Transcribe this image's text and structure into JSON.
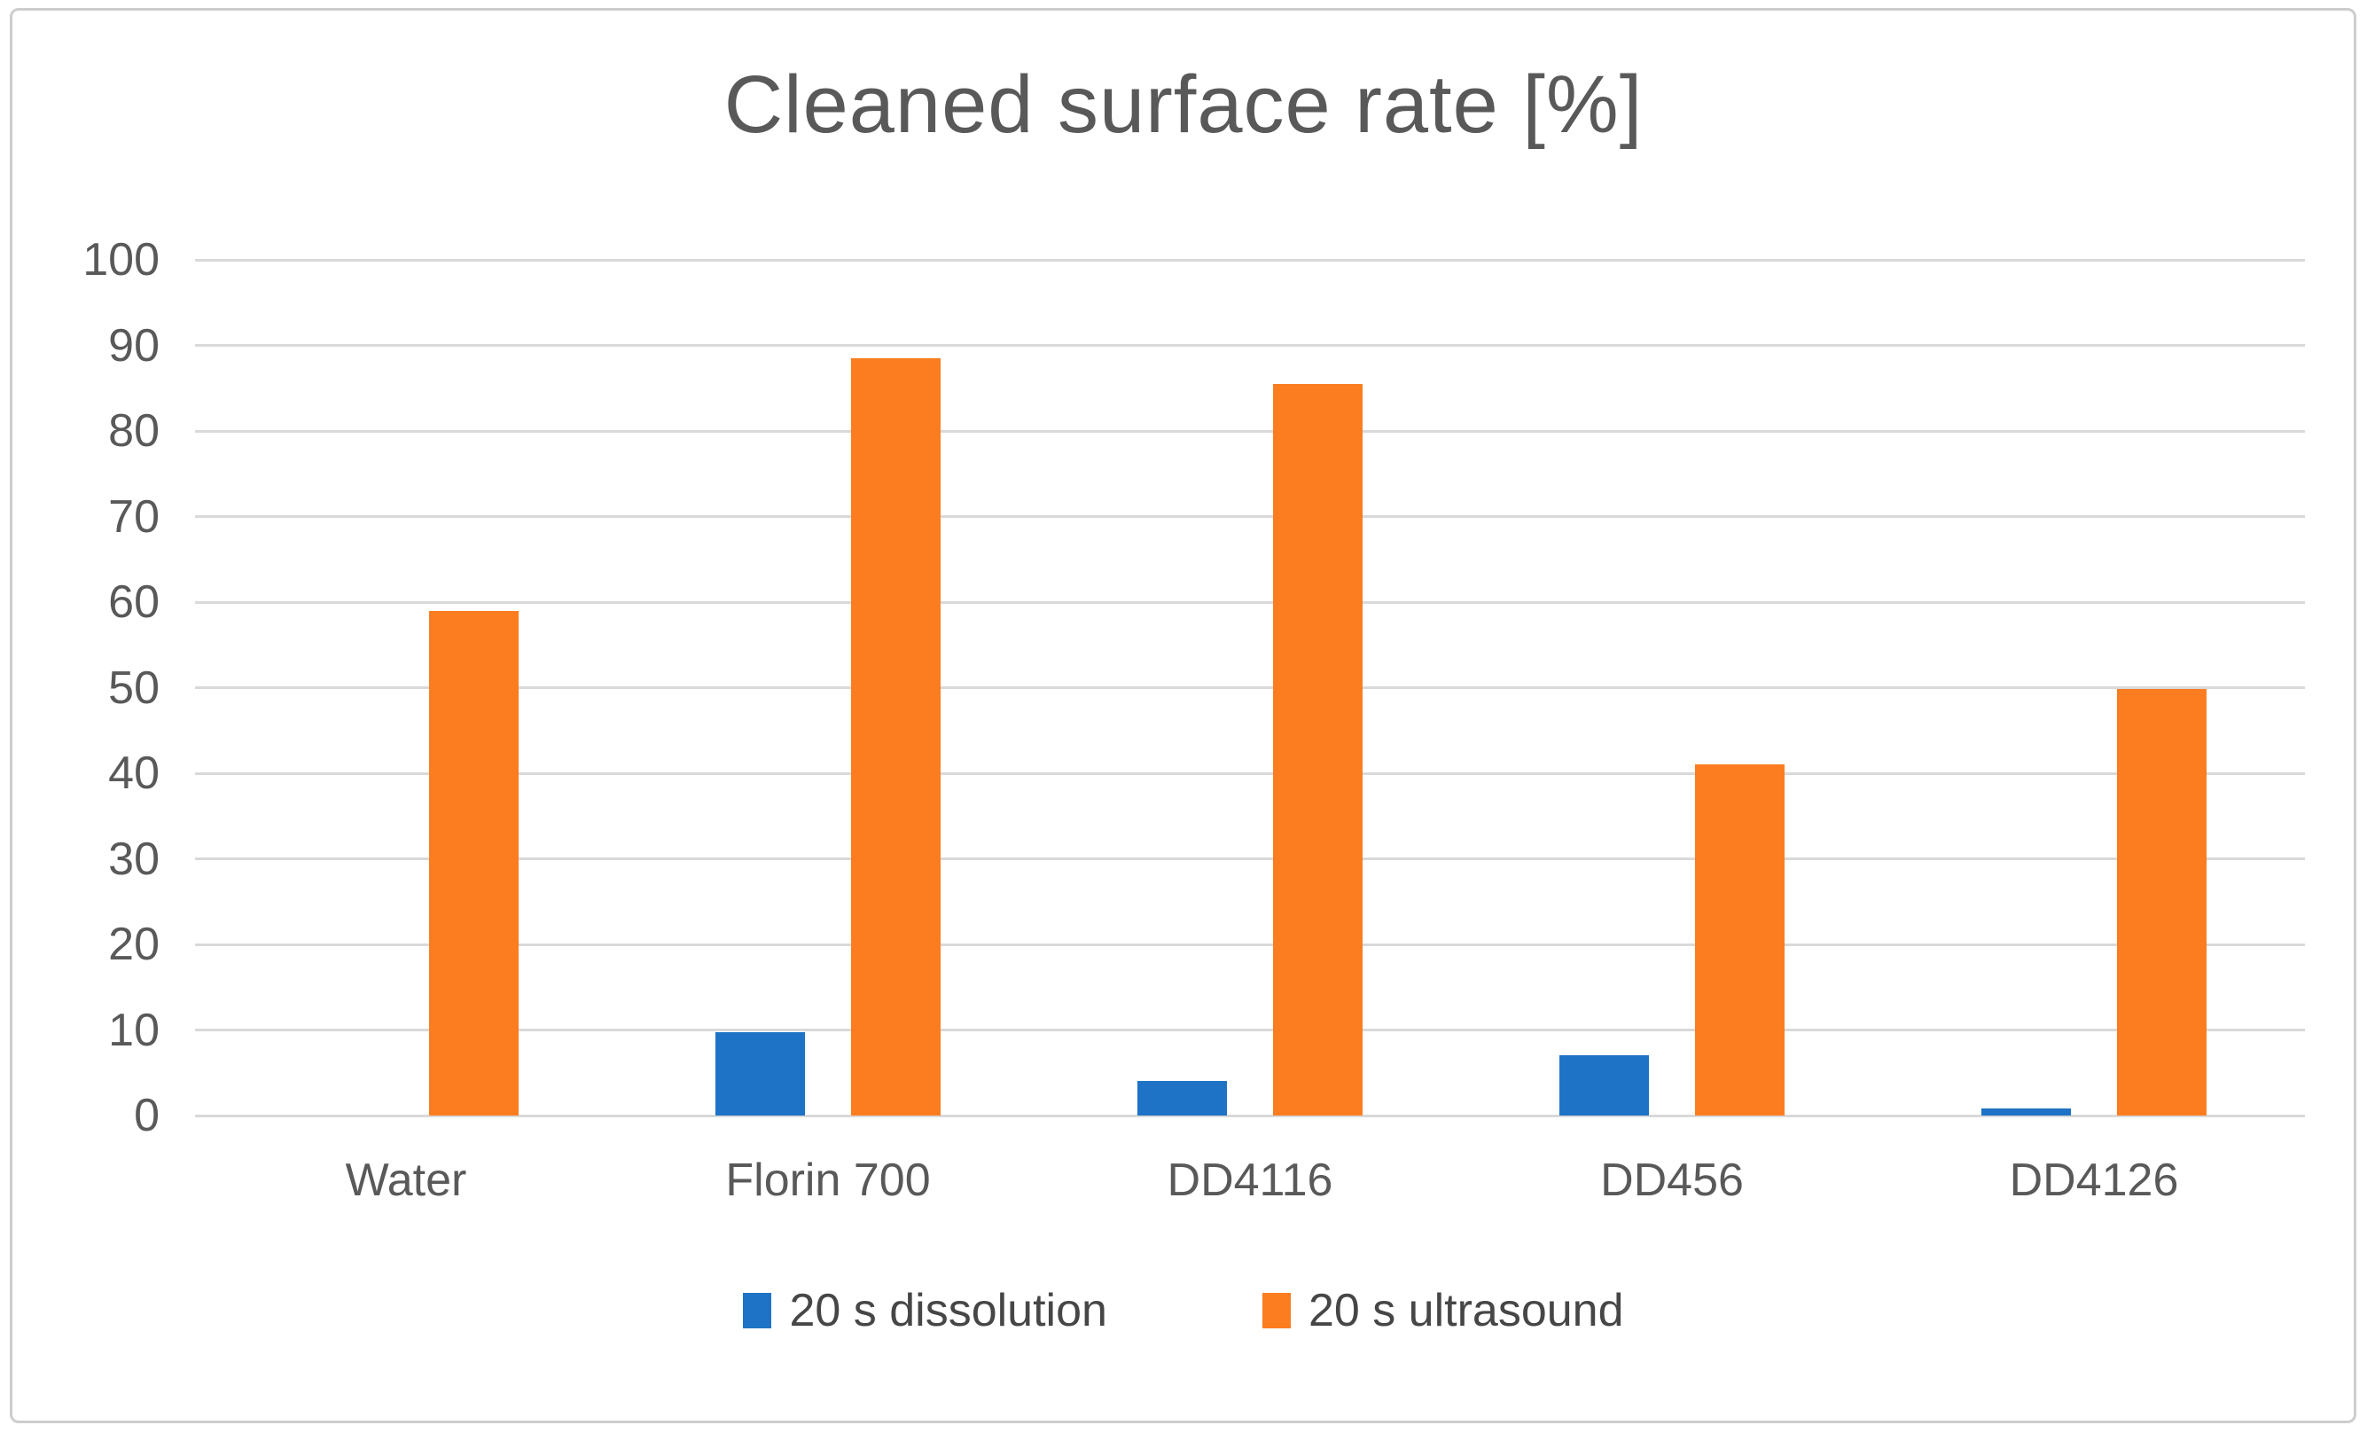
{
  "title": "Cleaned surface rate [%]",
  "colors": {
    "series_dissolution": "#1E73C6",
    "series_ultrasound": "#FB7D20",
    "gridline": "#D9D9D9",
    "frame_border": "#CDCDCD",
    "axis_text": "#595959",
    "legend_text": "#464646",
    "background": "#ffffff"
  },
  "chart_data": {
    "type": "bar",
    "title": "Cleaned surface rate [%]",
    "categories": [
      "Water",
      "Florin 700",
      "DD4116",
      "DD456",
      "DD4126"
    ],
    "series": [
      {
        "name": "20 s dissolution",
        "color": "#1E73C6",
        "values": [
          0,
          9.7,
          4,
          7,
          0.8
        ]
      },
      {
        "name": "20 s ultrasound",
        "color": "#FB7D20",
        "values": [
          59,
          88.5,
          85.5,
          41,
          49.8
        ]
      }
    ],
    "xlabel": "",
    "ylabel": "",
    "ylim": [
      0,
      100
    ],
    "yticks": [
      0,
      10,
      20,
      30,
      40,
      50,
      60,
      70,
      80,
      90,
      100
    ],
    "grid": true,
    "legend_position": "bottom"
  }
}
